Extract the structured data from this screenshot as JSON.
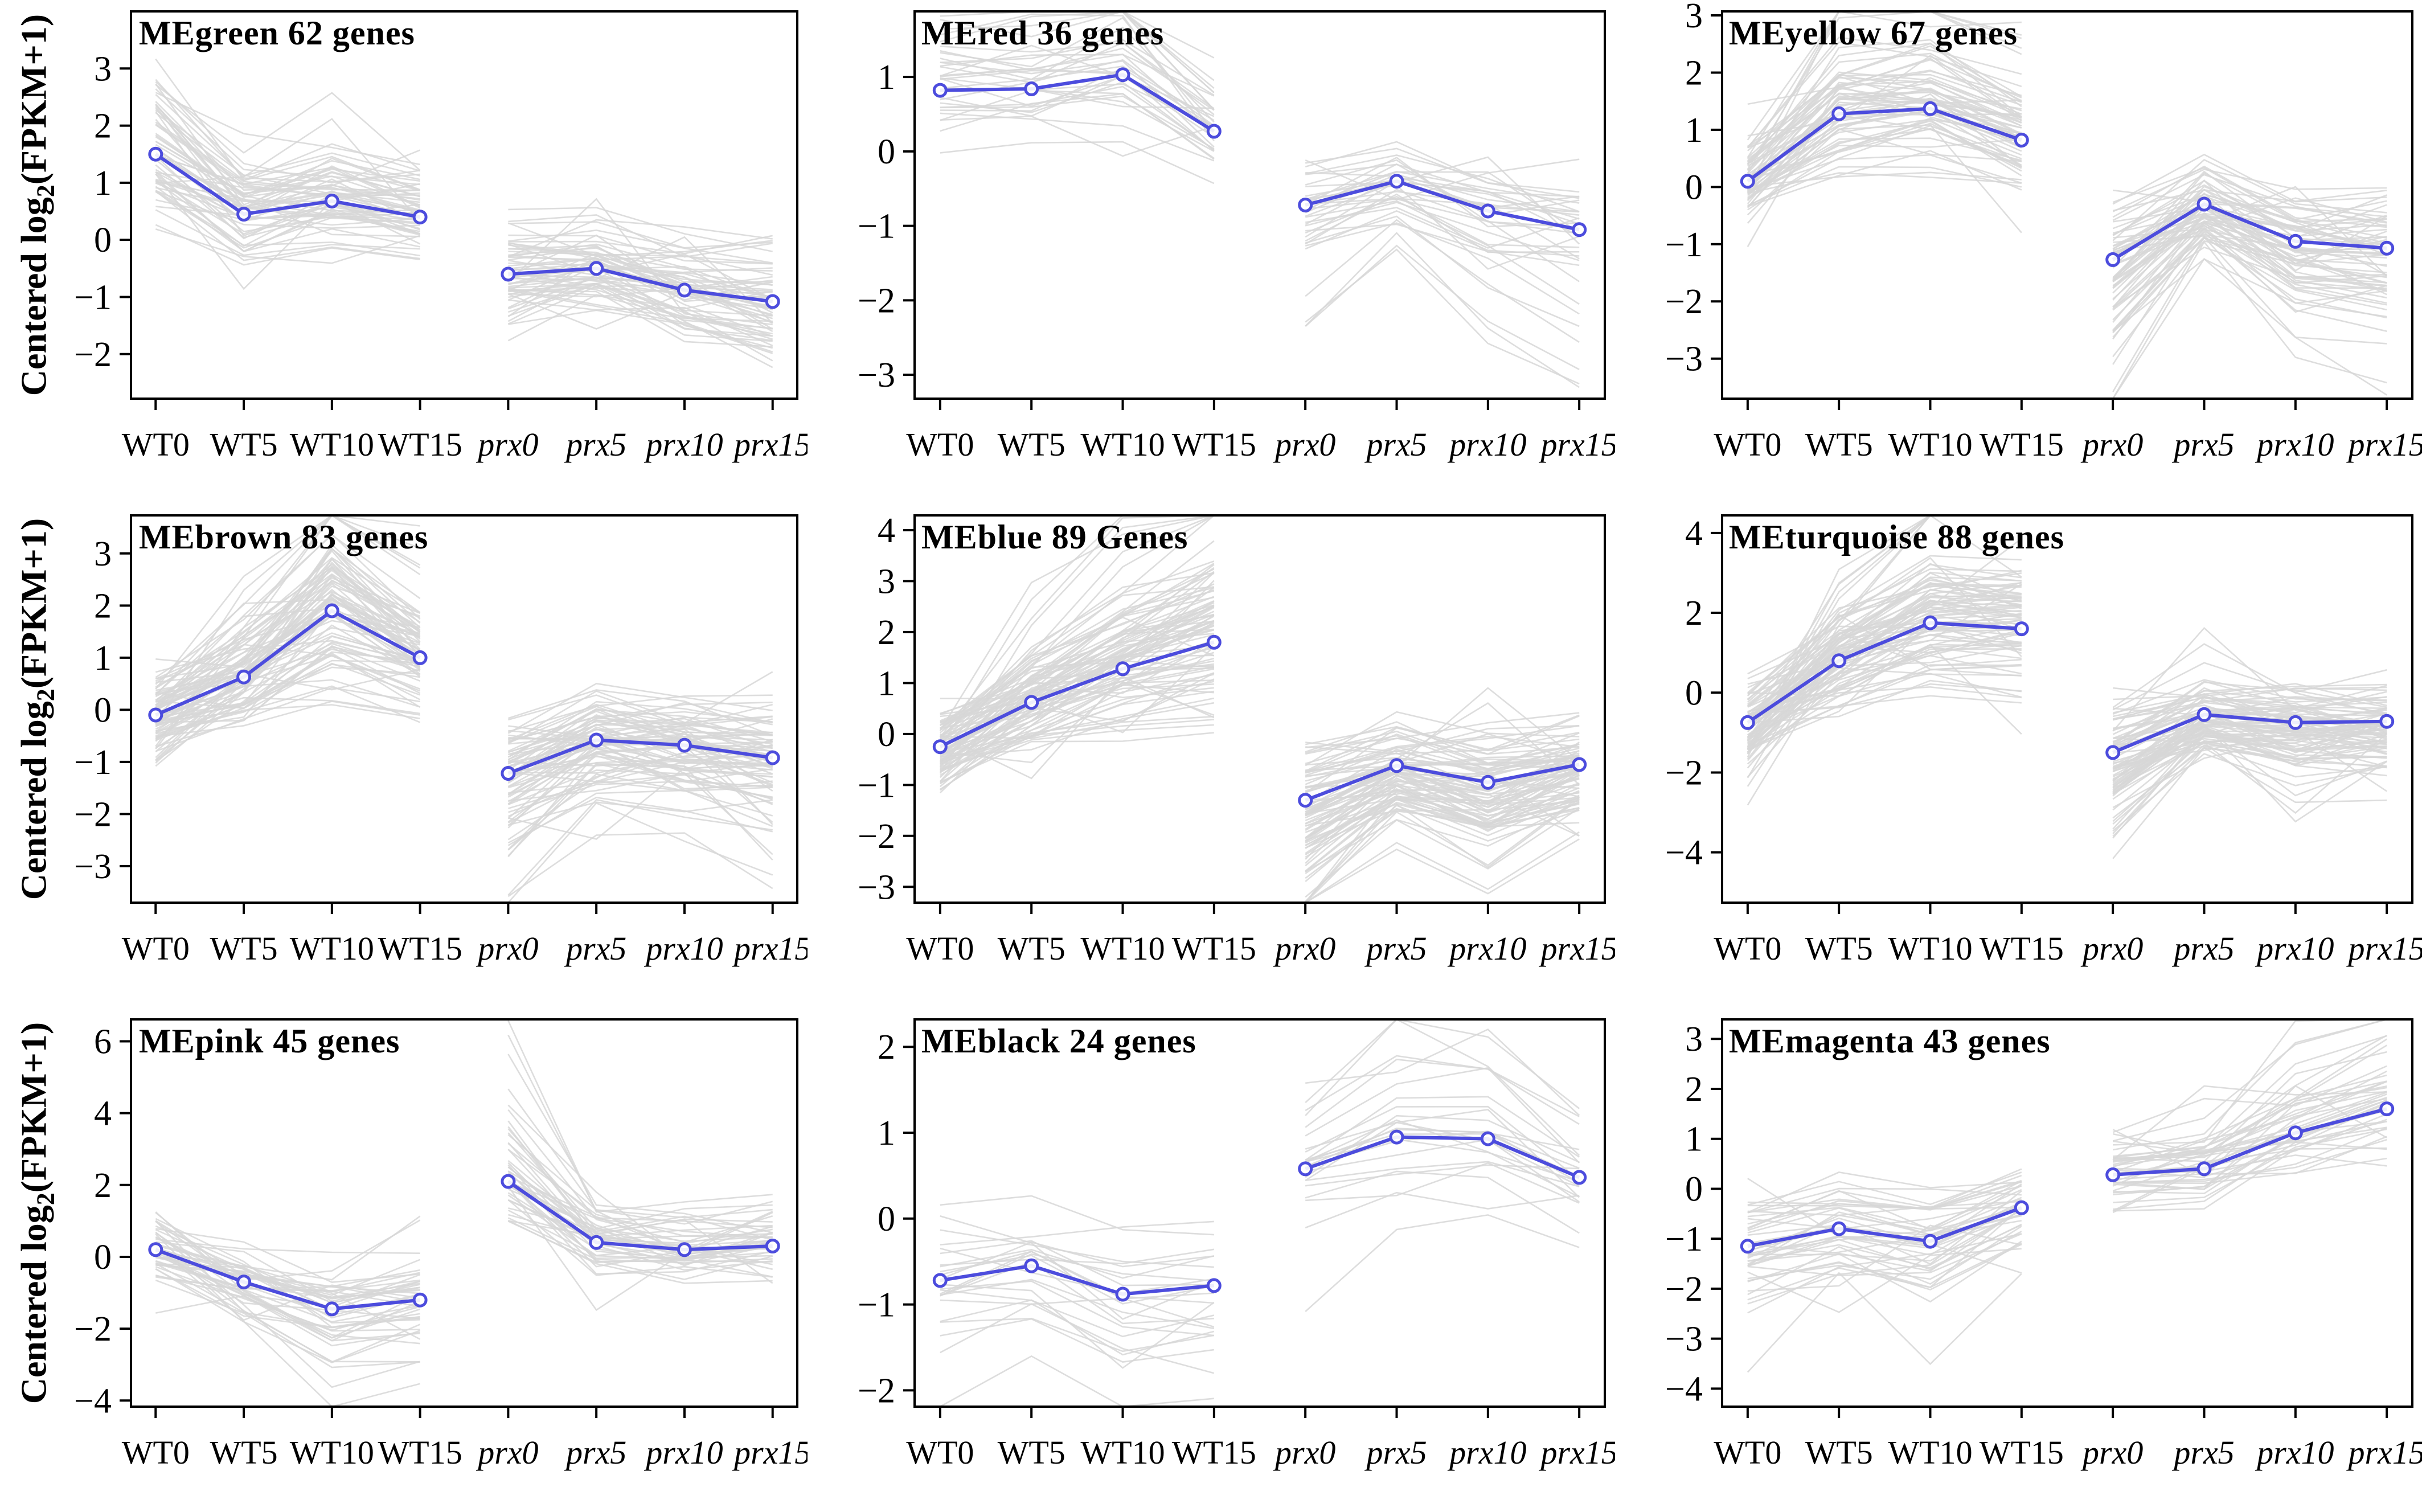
{
  "figure": {
    "ylabel_pre": "Centered log",
    "ylabel_sub": "2",
    "ylabel_post": "(FPKM+1)",
    "categories": [
      "WT0",
      "WT5",
      "WT10",
      "WT15",
      "prx0",
      "prx5",
      "prx10",
      "prx15"
    ],
    "italic_from_index": 4,
    "group_break_index": 4,
    "colors": {
      "eigengene_line": "#4c4cdd",
      "marker_fill": "#ffffff",
      "background_line": "#d7d7d7",
      "axis": "#000000",
      "text": "#000000"
    }
  },
  "chart_data": [
    {
      "type": "line",
      "title": "MEgreen  62 genes",
      "gene_count": 62,
      "categories": [
        "WT0",
        "WT5",
        "WT10",
        "WT15",
        "prx0",
        "prx5",
        "prx10",
        "prx15"
      ],
      "series": [
        {
          "name": "eigengene",
          "values": [
            1.5,
            0.45,
            0.68,
            0.4,
            -0.6,
            -0.5,
            -0.88,
            -1.08
          ]
        }
      ],
      "yticks": [
        3,
        2,
        1,
        0,
        -1,
        -2
      ],
      "ylim": [
        -2.78,
        4.0
      ],
      "background_spread": 0.9
    },
    {
      "type": "line",
      "title": "MEred  36 genes",
      "gene_count": 36,
      "categories": [
        "WT0",
        "WT5",
        "WT10",
        "WT15",
        "prx0",
        "prx5",
        "prx10",
        "prx15"
      ],
      "series": [
        {
          "name": "eigengene",
          "values": [
            0.82,
            0.84,
            1.03,
            0.27,
            -0.72,
            -0.4,
            -0.8,
            -1.05
          ]
        }
      ],
      "yticks": [
        1,
        0,
        -1,
        -2,
        -3
      ],
      "ylim": [
        -3.32,
        1.88
      ],
      "background_spread": 0.6
    },
    {
      "type": "line",
      "title": "MEyellow  67 genes",
      "gene_count": 67,
      "categories": [
        "WT0",
        "WT5",
        "WT10",
        "WT15",
        "prx0",
        "prx5",
        "prx10",
        "prx15"
      ],
      "series": [
        {
          "name": "eigengene",
          "values": [
            0.1,
            1.28,
            1.37,
            0.82,
            -1.27,
            -0.3,
            -0.95,
            -1.07
          ]
        }
      ],
      "yticks": [
        3,
        2,
        1,
        0,
        -1,
        -2,
        -3
      ],
      "ylim": [
        -3.7,
        3.07
      ],
      "background_spread": 0.85
    },
    {
      "type": "line",
      "title": "MEbrown  83 genes",
      "gene_count": 83,
      "categories": [
        "WT0",
        "WT5",
        "WT10",
        "WT15",
        "prx0",
        "prx5",
        "prx10",
        "prx15"
      ],
      "series": [
        {
          "name": "eigengene",
          "values": [
            -0.1,
            0.63,
            1.9,
            1.0,
            -1.22,
            -0.58,
            -0.68,
            -0.92
          ]
        }
      ],
      "yticks": [
        3,
        2,
        1,
        0,
        -1,
        -2,
        -3
      ],
      "ylim": [
        -3.7,
        3.73
      ],
      "background_spread": 0.95
    },
    {
      "type": "line",
      "title": "MEblue  89 Genes",
      "gene_count": 89,
      "categories": [
        "WT0",
        "WT5",
        "WT10",
        "WT15",
        "prx0",
        "prx5",
        "prx10",
        "prx15"
      ],
      "series": [
        {
          "name": "eigengene",
          "values": [
            -0.25,
            0.62,
            1.28,
            1.8,
            -1.3,
            -0.62,
            -0.95,
            -0.6
          ]
        }
      ],
      "yticks": [
        4,
        3,
        2,
        1,
        0,
        -1,
        -2,
        -3
      ],
      "ylim": [
        -3.31,
        4.29
      ],
      "background_spread": 0.9
    },
    {
      "type": "line",
      "title": "MEturquoise  88 genes",
      "gene_count": 88,
      "categories": [
        "WT0",
        "WT5",
        "WT10",
        "WT15",
        "prx0",
        "prx5",
        "prx10",
        "prx15"
      ],
      "series": [
        {
          "name": "eigengene",
          "values": [
            -0.75,
            0.8,
            1.75,
            1.6,
            -1.5,
            -0.55,
            -0.75,
            -0.72
          ]
        }
      ],
      "yticks": [
        4,
        2,
        0,
        -2,
        -4
      ],
      "ylim": [
        -5.26,
        4.44
      ],
      "background_spread": 1.15
    },
    {
      "type": "line",
      "title": "MEpink  45 genes",
      "gene_count": 45,
      "categories": [
        "WT0",
        "WT5",
        "WT10",
        "WT15",
        "prx0",
        "prx5",
        "prx10",
        "prx15"
      ],
      "series": [
        {
          "name": "eigengene",
          "values": [
            0.2,
            -0.7,
            -1.45,
            -1.2,
            2.1,
            0.4,
            0.2,
            0.3
          ]
        }
      ],
      "yticks": [
        6,
        4,
        2,
        0,
        -2,
        -4
      ],
      "ylim": [
        -4.17,
        6.61
      ],
      "background_spread": 1.15
    },
    {
      "type": "line",
      "title": "MEblack  24 genes",
      "gene_count": 24,
      "categories": [
        "WT0",
        "WT5",
        "WT10",
        "WT15",
        "prx0",
        "prx5",
        "prx10",
        "prx15"
      ],
      "series": [
        {
          "name": "eigengene",
          "values": [
            -0.72,
            -0.55,
            -0.88,
            -0.78,
            0.58,
            0.95,
            0.93,
            0.48
          ]
        }
      ],
      "yticks": [
        2,
        1,
        0,
        -1,
        -2
      ],
      "ylim": [
        -2.19,
        2.32
      ],
      "background_spread": 0.65
    },
    {
      "type": "line",
      "title": "MEmagenta  43 genes",
      "gene_count": 43,
      "categories": [
        "WT0",
        "WT5",
        "WT10",
        "WT15",
        "prx0",
        "prx5",
        "prx10",
        "prx15"
      ],
      "series": [
        {
          "name": "eigengene",
          "values": [
            -1.15,
            -0.8,
            -1.05,
            -0.38,
            0.28,
            0.4,
            1.12,
            1.6
          ]
        }
      ],
      "yticks": [
        3,
        2,
        1,
        0,
        -1,
        -2,
        -3,
        -4
      ],
      "ylim": [
        -4.36,
        3.39
      ],
      "background_spread": 0.9
    }
  ]
}
